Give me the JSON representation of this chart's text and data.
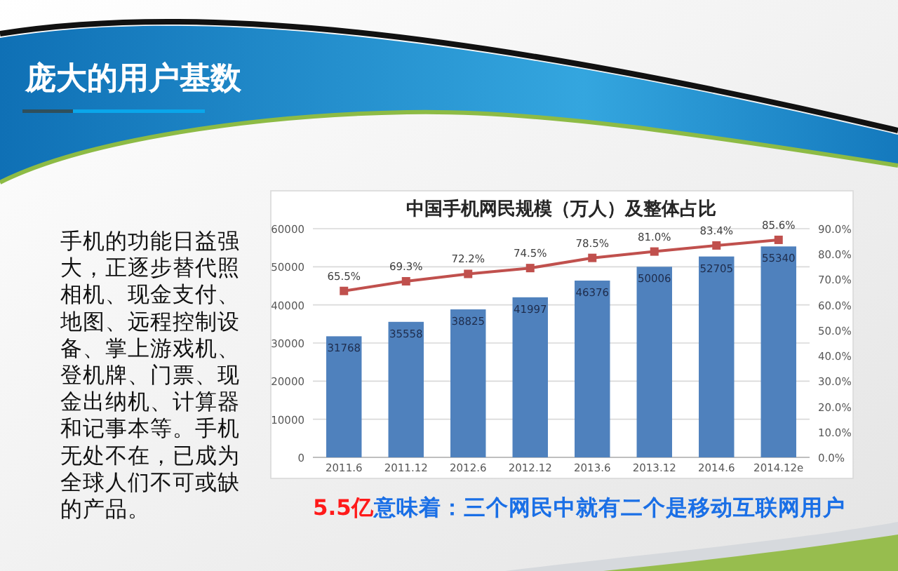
{
  "chart_data": {
    "type": "bar",
    "title": "中国手机网民规模（万人）及整体占比",
    "annotations": [
      "庞大的用户基数",
      "手机的功能日益强大，正逐步替代照相机、现金支付、地图、远程控制设备、掌上游戏机、登机牌、门票、现金出纳机、计算器和记事本等。手机无处不在，已成为全球人们不可或缺的产品。",
      "5.5亿",
      "意味着：三个网民中就有二个是移动互联网用户"
    ],
    "categories": [
      "2011.6",
      "2011.12",
      "2012.6",
      "2012.12",
      "2013.6",
      "2013.12",
      "2014.6",
      "2014.12e"
    ],
    "series": [
      {
        "color": "#4f81bd",
        "values": [
          31768,
          35558,
          38825,
          41997,
          46376,
          50006,
          52705,
          55340
        ],
        "value_labels": [
          "31768",
          "35558",
          "38825",
          "41997",
          "46376",
          "50006",
          "52705",
          "55340"
        ]
      },
      {
        "type": "line",
        "axis": "y2",
        "color": "#c0504d",
        "values": [
          65.5,
          69.3,
          72.2,
          74.5,
          78.5,
          81.0,
          83.4,
          85.6
        ],
        "value_labels": [
          "65.5%",
          "69.3%",
          "72.2%",
          "74.5%",
          "78.5%",
          "81.0%",
          "83.4%",
          "85.6%"
        ]
      }
    ],
    "ylim": [
      0,
      60000
    ],
    "yticks": [
      0,
      10000,
      20000,
      30000,
      40000,
      50000,
      60000
    ],
    "y2lim": [
      0,
      90
    ],
    "y2ticks": [
      {
        "value": 0,
        "label": "0.0%"
      },
      {
        "value": 10,
        "label": "10.0%"
      },
      {
        "value": 20,
        "label": "20.0%"
      },
      {
        "value": 30,
        "label": "30.0%"
      },
      {
        "value": 40,
        "label": "40.0%"
      },
      {
        "value": 50,
        "label": "50.0%"
      },
      {
        "value": 60,
        "label": "60.0%"
      },
      {
        "value": 70,
        "label": "70.0%"
      },
      {
        "value": 80,
        "label": "80.0%"
      },
      {
        "value": 90,
        "label": "90.0%"
      }
    ],
    "grid": "y",
    "marker": "square"
  }
}
